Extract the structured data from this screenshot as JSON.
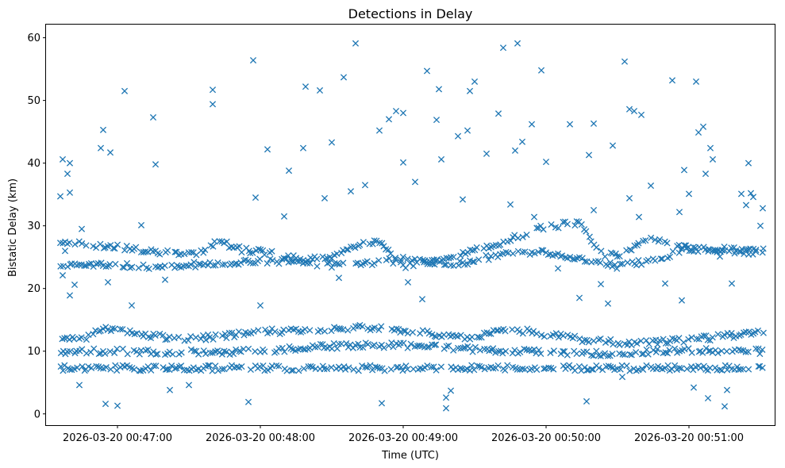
{
  "chart_data": {
    "type": "scatter",
    "title": "Detections in Delay",
    "xlabel": "Time (UTC)",
    "ylabel": "Bistatic Delay (km)",
    "marker": "x",
    "color": "#1f77b4",
    "grid": false,
    "legend": "none",
    "x_tick_labels": [
      "2026-03-20 00:47:00",
      "2026-03-20 00:48:00",
      "2026-03-20 00:49:00",
      "2026-03-20 00:50:00",
      "2026-03-20 00:51:00"
    ],
    "x_ticks": [
      "00:47:00",
      "00:48:00",
      "00:49:00",
      "00:50:00",
      "00:51:00"
    ],
    "x_range": [
      "00:46:30",
      "00:51:36"
    ],
    "y_ticks": [
      0,
      10,
      20,
      30,
      40,
      50,
      60
    ],
    "ylim": [
      -1.8,
      62.1
    ],
    "sampling": {
      "start": "00:46:36",
      "end": "00:51:31",
      "step_seconds": 1
    },
    "tracks": [
      {
        "name": "",
        "points": [
          [
            "00:46:37",
            27.5
          ],
          [
            "00:47:00",
            26.6
          ],
          [
            "00:47:20",
            25.8
          ],
          [
            "00:47:33",
            25.4
          ],
          [
            "00:47:42",
            27.6
          ],
          [
            "00:47:52",
            26.2
          ],
          [
            "00:48:08",
            25.4
          ],
          [
            "00:48:20",
            24.5
          ],
          [
            "00:48:30",
            25.2
          ],
          [
            "00:48:40",
            26.8
          ],
          [
            "00:48:50",
            27.5
          ],
          [
            "00:49:00",
            23.4
          ],
          [
            "00:49:20",
            25.0
          ],
          [
            "00:49:35",
            26.5
          ],
          [
            "00:49:45",
            28.0
          ],
          [
            "00:50:00",
            29.8
          ],
          [
            "00:50:15",
            30.6
          ],
          [
            "00:50:22",
            25.6
          ],
          [
            "00:50:30",
            25.4
          ],
          [
            "00:50:45",
            27.8
          ],
          [
            "00:51:00",
            26.4
          ],
          [
            "00:51:31",
            25.7
          ]
        ]
      },
      {
        "name": "",
        "points": [
          [
            "00:46:45",
            23.8
          ],
          [
            "00:47:00",
            23.8
          ],
          [
            "00:47:15",
            23.4
          ],
          [
            "00:47:30",
            23.8
          ],
          [
            "00:47:45",
            24.0
          ],
          [
            "00:48:00",
            24.4
          ],
          [
            "00:48:15",
            24.3
          ],
          [
            "00:48:30",
            23.7
          ],
          [
            "00:48:45",
            24.0
          ],
          [
            "00:49:00",
            24.6
          ],
          [
            "00:49:10",
            24.2
          ],
          [
            "00:49:22",
            23.9
          ],
          [
            "00:49:40",
            25.3
          ],
          [
            "00:50:00",
            25.9
          ],
          [
            "00:50:30",
            23.6
          ],
          [
            "00:50:45",
            24.6
          ],
          [
            "00:51:00",
            26.4
          ],
          [
            "00:51:31",
            26.0
          ]
        ]
      },
      {
        "name": "",
        "points": [
          [
            "00:46:36",
            11.7
          ],
          [
            "00:46:45",
            12.0
          ],
          [
            "00:46:55",
            13.5
          ],
          [
            "00:47:05",
            13.2
          ],
          [
            "00:47:15",
            12.4
          ],
          [
            "00:47:30",
            12.0
          ],
          [
            "00:47:45",
            12.5
          ],
          [
            "00:48:00",
            13.2
          ],
          [
            "00:48:15",
            13.2
          ],
          [
            "00:48:30",
            13.6
          ],
          [
            "00:48:45",
            13.8
          ],
          [
            "00:49:00",
            13.4
          ],
          [
            "00:49:15",
            12.6
          ],
          [
            "00:49:30",
            12.1
          ],
          [
            "00:49:45",
            13.6
          ],
          [
            "00:50:00",
            12.6
          ],
          [
            "00:50:15",
            11.9
          ],
          [
            "00:50:30",
            11.4
          ],
          [
            "00:50:45",
            11.4
          ],
          [
            "00:51:00",
            11.8
          ],
          [
            "00:51:15",
            12.4
          ],
          [
            "00:51:31",
            13.1
          ]
        ]
      },
      {
        "name": "",
        "points": [
          [
            "00:46:36",
            7.3
          ],
          [
            "00:47:00",
            7.3
          ],
          [
            "00:47:30",
            7.3
          ],
          [
            "00:48:00",
            7.3
          ],
          [
            "00:48:30",
            7.3
          ],
          [
            "00:49:00",
            7.3
          ],
          [
            "00:49:30",
            7.3
          ],
          [
            "00:50:00",
            7.3
          ],
          [
            "00:50:30",
            7.3
          ],
          [
            "00:51:00",
            7.3
          ],
          [
            "00:51:31",
            7.3
          ]
        ]
      },
      {
        "name": "",
        "points": [
          [
            "00:46:36",
            10.0
          ],
          [
            "00:47:00",
            10.0
          ],
          [
            "00:47:30",
            9.8
          ],
          [
            "00:48:00",
            10.0
          ],
          [
            "00:48:30",
            10.8
          ],
          [
            "00:49:00",
            11.0
          ],
          [
            "00:49:30",
            10.3
          ],
          [
            "00:50:00",
            9.8
          ],
          [
            "00:50:30",
            9.6
          ],
          [
            "00:51:00",
            10.2
          ],
          [
            "00:51:31",
            10.0
          ]
        ]
      }
    ],
    "scattered": [
      [
        "00:46:36",
        34.7
      ],
      [
        "00:46:37",
        40.6
      ],
      [
        "00:46:37",
        22.1
      ],
      [
        "00:46:38",
        26.0
      ],
      [
        "00:46:39",
        38.3
      ],
      [
        "00:46:40",
        35.3
      ],
      [
        "00:46:40",
        40.0
      ],
      [
        "00:46:40",
        18.9
      ],
      [
        "00:46:42",
        20.6
      ],
      [
        "00:46:44",
        4.6
      ],
      [
        "00:46:45",
        29.5
      ],
      [
        "00:46:53",
        42.4
      ],
      [
        "00:46:54",
        45.3
      ],
      [
        "00:46:55",
        1.6
      ],
      [
        "00:46:56",
        21.0
      ],
      [
        "00:46:57",
        41.7
      ],
      [
        "00:47:00",
        1.3
      ],
      [
        "00:47:03",
        51.5
      ],
      [
        "00:47:06",
        17.3
      ],
      [
        "00:47:10",
        30.1
      ],
      [
        "00:47:15",
        47.3
      ],
      [
        "00:47:16",
        39.8
      ],
      [
        "00:47:20",
        21.4
      ],
      [
        "00:47:22",
        3.8
      ],
      [
        "00:47:30",
        4.6
      ],
      [
        "00:47:40",
        51.7
      ],
      [
        "00:47:40",
        49.4
      ],
      [
        "00:47:55",
        1.9
      ],
      [
        "00:47:57",
        56.4
      ],
      [
        "00:47:58",
        34.5
      ],
      [
        "00:48:00",
        17.3
      ],
      [
        "00:48:03",
        42.2
      ],
      [
        "00:48:10",
        31.5
      ],
      [
        "00:48:12",
        38.8
      ],
      [
        "00:48:18",
        42.4
      ],
      [
        "00:48:19",
        52.2
      ],
      [
        "00:48:25",
        51.6
      ],
      [
        "00:48:27",
        34.4
      ],
      [
        "00:48:30",
        43.3
      ],
      [
        "00:48:33",
        21.7
      ],
      [
        "00:48:35",
        53.7
      ],
      [
        "00:48:38",
        35.5
      ],
      [
        "00:48:40",
        59.1
      ],
      [
        "00:48:44",
        36.5
      ],
      [
        "00:48:50",
        45.2
      ],
      [
        "00:48:51",
        1.7
      ],
      [
        "00:48:54",
        47.0
      ],
      [
        "00:48:57",
        48.3
      ],
      [
        "00:49:00",
        40.1
      ],
      [
        "00:49:00",
        48.0
      ],
      [
        "00:49:02",
        21.0
      ],
      [
        "00:49:05",
        37.0
      ],
      [
        "00:49:08",
        18.3
      ],
      [
        "00:49:10",
        54.7
      ],
      [
        "00:49:14",
        46.9
      ],
      [
        "00:49:15",
        51.8
      ],
      [
        "00:49:16",
        40.6
      ],
      [
        "00:49:18",
        0.9
      ],
      [
        "00:49:18",
        2.6
      ],
      [
        "00:49:20",
        3.7
      ],
      [
        "00:49:23",
        44.3
      ],
      [
        "00:49:25",
        34.2
      ],
      [
        "00:49:27",
        45.2
      ],
      [
        "00:49:28",
        51.5
      ],
      [
        "00:49:30",
        53.0
      ],
      [
        "00:49:35",
        41.5
      ],
      [
        "00:49:40",
        47.9
      ],
      [
        "00:49:42",
        58.4
      ],
      [
        "00:49:45",
        33.4
      ],
      [
        "00:49:47",
        42.0
      ],
      [
        "00:49:48",
        59.1
      ],
      [
        "00:49:50",
        43.4
      ],
      [
        "00:49:54",
        46.2
      ],
      [
        "00:49:55",
        31.4
      ],
      [
        "00:49:58",
        54.8
      ],
      [
        "00:50:00",
        40.2
      ],
      [
        "00:50:05",
        23.2
      ],
      [
        "00:50:10",
        46.2
      ],
      [
        "00:50:14",
        18.5
      ],
      [
        "00:50:17",
        2.0
      ],
      [
        "00:50:18",
        41.3
      ],
      [
        "00:50:20",
        46.3
      ],
      [
        "00:50:20",
        32.5
      ],
      [
        "00:50:23",
        20.7
      ],
      [
        "00:50:26",
        17.6
      ],
      [
        "00:50:28",
        42.8
      ],
      [
        "00:50:32",
        5.9
      ],
      [
        "00:50:33",
        56.2
      ],
      [
        "00:50:35",
        48.6
      ],
      [
        "00:50:35",
        34.4
      ],
      [
        "00:50:37",
        48.3
      ],
      [
        "00:50:39",
        31.4
      ],
      [
        "00:50:40",
        47.7
      ],
      [
        "00:50:44",
        36.4
      ],
      [
        "00:50:50",
        20.8
      ],
      [
        "00:50:53",
        53.2
      ],
      [
        "00:50:56",
        32.2
      ],
      [
        "00:50:57",
        18.1
      ],
      [
        "00:50:58",
        38.9
      ],
      [
        "00:51:00",
        35.1
      ],
      [
        "00:51:02",
        4.2
      ],
      [
        "00:51:03",
        53.0
      ],
      [
        "00:51:04",
        44.9
      ],
      [
        "00:51:06",
        45.8
      ],
      [
        "00:51:07",
        38.3
      ],
      [
        "00:51:08",
        2.5
      ],
      [
        "00:51:09",
        42.4
      ],
      [
        "00:51:10",
        40.6
      ],
      [
        "00:51:13",
        25.1
      ],
      [
        "00:51:15",
        1.2
      ],
      [
        "00:51:16",
        3.8
      ],
      [
        "00:51:18",
        20.8
      ],
      [
        "00:51:22",
        35.1
      ],
      [
        "00:51:24",
        33.3
      ],
      [
        "00:51:25",
        40.0
      ],
      [
        "00:51:26",
        35.2
      ],
      [
        "00:51:27",
        34.6
      ],
      [
        "00:51:30",
        30.0
      ],
      [
        "00:51:31",
        32.8
      ]
    ]
  }
}
